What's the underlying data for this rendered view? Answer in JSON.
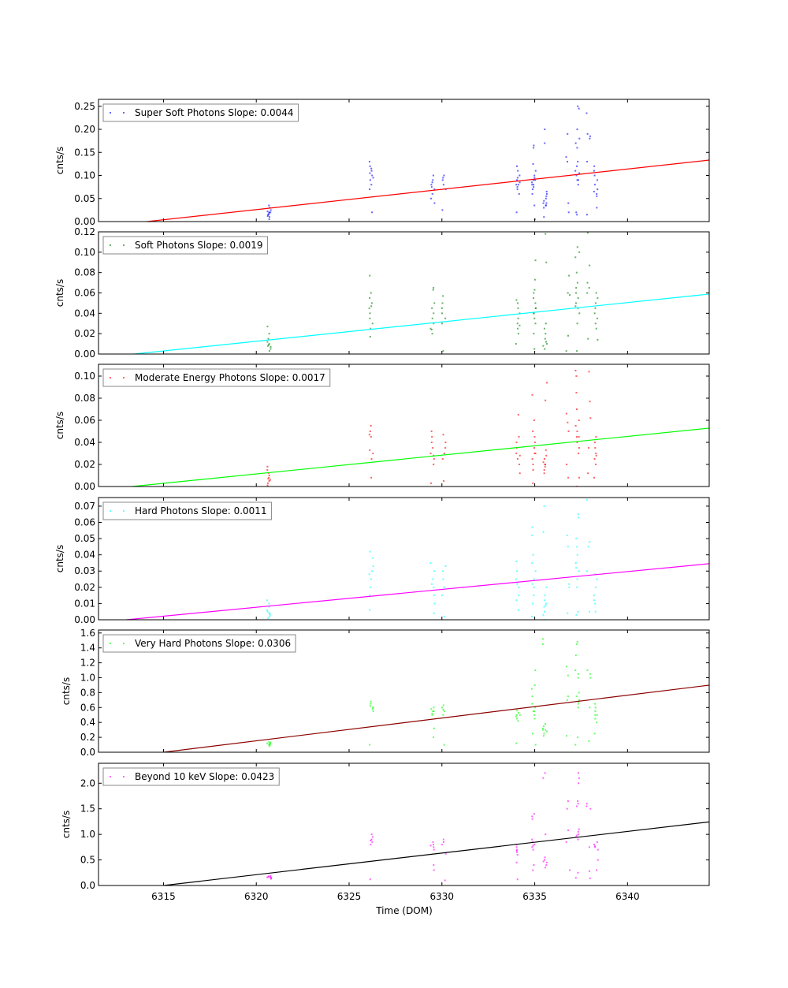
{
  "chart_data": {
    "type": "scatter",
    "xlabel": "Time (DOM)",
    "xlim": [
      6311.5,
      6344.4
    ],
    "x_ticks": [
      6315,
      6320,
      6325,
      6330,
      6335,
      6340
    ],
    "x_tick_labels": [
      "6315",
      "6320",
      "6325",
      "6330",
      "6335",
      "6340"
    ],
    "cluster_x": [
      6320.7,
      6326.2,
      6329.5,
      6330.1,
      6334.1,
      6334.95,
      6335.55,
      6336.8,
      6337.3,
      6337.9,
      6338.3
    ],
    "panels": [
      {
        "legend": "Super Soft Photons Slope: 0.0044",
        "ylabel": "cnts/s",
        "ylim": [
          0,
          0.265
        ],
        "y_ticks": [
          0,
          0.05,
          0.1,
          0.15,
          0.2,
          0.25
        ],
        "y_tick_labels": [
          "0.00",
          "0.05",
          "0.10",
          "0.15",
          "0.20",
          "0.25"
        ],
        "point_color": "#0000ff",
        "fit_color": "#ff0000",
        "fit": {
          "slope": 0.0044,
          "zero_x": 6314.1
        },
        "clusters": [
          [
            0.005,
            0.01,
            0.012,
            0.015,
            0.018,
            0.02,
            0.022,
            0.025,
            0.03,
            0.035,
            0.015,
            0.02
          ],
          [
            0.02,
            0.07,
            0.08,
            0.09,
            0.1,
            0.105,
            0.11,
            0.115,
            0.12,
            0.13,
            0.095
          ],
          [
            0.04,
            0.05,
            0.06,
            0.07,
            0.08,
            0.085,
            0.09,
            0.1,
            0.075
          ],
          [
            0.025,
            0.07,
            0.08,
            0.09,
            0.1,
            0.095
          ],
          [
            0.02,
            0.06,
            0.07,
            0.075,
            0.08,
            0.085,
            0.09,
            0.1,
            0.11,
            0.12,
            0.08,
            0.095
          ],
          [
            0.005,
            0.035,
            0.06,
            0.07,
            0.075,
            0.08,
            0.085,
            0.09,
            0.095,
            0.1,
            0.11,
            0.125,
            0.16,
            0.165,
            0.08,
            0.09
          ],
          [
            0.2,
            0.17,
            0.01,
            0.03,
            0.035,
            0.04,
            0.045,
            0.05,
            0.055,
            0.06,
            0.065,
            0.04,
            0.035
          ],
          [
            0.02,
            0.04,
            0.14,
            0.13,
            0.19
          ],
          [
            0.02,
            0.015,
            0.08,
            0.09,
            0.1,
            0.105,
            0.11,
            0.12,
            0.13,
            0.16,
            0.17,
            0.18,
            0.2,
            0.245,
            0.25,
            0.09
          ],
          [
            0.015,
            0.18,
            0.185,
            0.19,
            0.235,
            0.13
          ],
          [
            0.03,
            0.055,
            0.06,
            0.07,
            0.08,
            0.09,
            0.1,
            0.11,
            0.12,
            0.065
          ]
        ]
      },
      {
        "legend": "Soft Photons Slope: 0.0019",
        "ylabel": "cnts/s",
        "ylim": [
          0,
          0.12
        ],
        "y_ticks": [
          0,
          0.02,
          0.04,
          0.06,
          0.08,
          0.1,
          0.12
        ],
        "y_tick_labels": [
          "0.00",
          "0.02",
          "0.04",
          "0.06",
          "0.08",
          "0.10",
          "0.12"
        ],
        "point_color": "#008000",
        "fit_color": "#00ffff",
        "fit": {
          "slope": 0.0019,
          "zero_x": 6313.4
        },
        "clusters": [
          [
            0.003,
            0.005,
            0.007,
            0.008,
            0.01,
            0.012,
            0.015,
            0.02,
            0.027,
            0.009
          ],
          [
            0.017,
            0.025,
            0.03,
            0.035,
            0.04,
            0.045,
            0.05,
            0.055,
            0.06,
            0.077,
            0.047
          ],
          [
            0.02,
            0.025,
            0.03,
            0.035,
            0.04,
            0.045,
            0.05,
            0.065,
            0.063,
            0.024
          ],
          [
            0.003,
            0.03,
            0.035,
            0.04,
            0.045,
            0.05,
            0.057
          ],
          [
            0.01,
            0.02,
            0.025,
            0.03,
            0.035,
            0.04,
            0.045,
            0.05,
            0.053,
            0.028
          ],
          [
            0.005,
            0.02,
            0.03,
            0.035,
            0.04,
            0.045,
            0.05,
            0.055,
            0.06,
            0.063,
            0.073,
            0.092,
            0.04,
            0.045
          ],
          [
            0.118,
            0.09,
            0.005,
            0.008,
            0.01,
            0.015,
            0.02,
            0.025,
            0.03,
            0.012
          ],
          [
            0.018,
            0.06,
            0.058,
            0.077,
            0.003
          ],
          [
            0.003,
            0.03,
            0.04,
            0.045,
            0.05,
            0.055,
            0.06,
            0.065,
            0.07,
            0.08,
            0.095,
            0.1,
            0.105,
            0.047
          ],
          [
            0.015,
            0.06,
            0.065,
            0.07,
            0.087,
            0.119
          ],
          [
            0.014,
            0.025,
            0.03,
            0.035,
            0.04,
            0.045,
            0.05,
            0.055,
            0.06
          ]
        ]
      },
      {
        "legend": "Moderate Energy Photons Slope: 0.0017",
        "ylabel": "cnts/s",
        "ylim": [
          0,
          0.1107
        ],
        "y_ticks": [
          0,
          0.02,
          0.04,
          0.06,
          0.08,
          0.1
        ],
        "y_tick_labels": [
          "0.00",
          "0.02",
          "0.04",
          "0.06",
          "0.08",
          "0.10"
        ],
        "point_color": "#ff0000",
        "fit_color": "#00ff00",
        "fit": {
          "slope": 0.0017,
          "zero_x": 6313.3
        },
        "clusters": [
          [
            0.001,
            0.003,
            0.005,
            0.007,
            0.008,
            0.01,
            0.012,
            0.015,
            0.018,
            0.006
          ],
          [
            0.008,
            0.025,
            0.03,
            0.033,
            0.045,
            0.05,
            0.055,
            0.047
          ],
          [
            0.003,
            0.02,
            0.025,
            0.03,
            0.035,
            0.04,
            0.045,
            0.05,
            0.028
          ],
          [
            0.005,
            0.025,
            0.03,
            0.035,
            0.04,
            0.047
          ],
          [
            0.012,
            0.02,
            0.025,
            0.03,
            0.035,
            0.04,
            0.045,
            0.065,
            0.028
          ],
          [
            0.003,
            0.015,
            0.02,
            0.025,
            0.03,
            0.035,
            0.04,
            0.045,
            0.05,
            0.06,
            0.083,
            0.03
          ],
          [
            0.094,
            0.078,
            0.012,
            0.015,
            0.018,
            0.02,
            0.022,
            0.025,
            0.028,
            0.033,
            0.02
          ],
          [
            0.008,
            0.05,
            0.058,
            0.066,
            0.02
          ],
          [
            0.0,
            0.008,
            0.03,
            0.035,
            0.04,
            0.045,
            0.05,
            0.055,
            0.06,
            0.07,
            0.085,
            0.1,
            0.105,
            0.045
          ],
          [
            0.012,
            0.062,
            0.077,
            0.104,
            0.035
          ],
          [
            0.008,
            0.02,
            0.025,
            0.03,
            0.035,
            0.04,
            0.045,
            0.028
          ]
        ]
      },
      {
        "legend": "Hard Photons Slope: 0.0011",
        "ylabel": "cnts/s",
        "ylim": [
          0,
          0.0753
        ],
        "y_ticks": [
          0,
          0.01,
          0.02,
          0.03,
          0.04,
          0.05,
          0.06,
          0.07
        ],
        "y_tick_labels": [
          "0.00",
          "0.01",
          "0.02",
          "0.03",
          "0.04",
          "0.05",
          "0.06",
          "0.07"
        ],
        "point_color": "#00ffff",
        "fit_color": "#ff00ff",
        "fit": {
          "slope": 0.0011,
          "zero_x": 6313.0
        },
        "clusters": [
          [
            0.001,
            0.002,
            0.003,
            0.004,
            0.005,
            0.006,
            0.008,
            0.01,
            0.012,
            0.004
          ],
          [
            0.006,
            0.015,
            0.02,
            0.025,
            0.03,
            0.033,
            0.038,
            0.042,
            0.028
          ],
          [
            0.004,
            0.01,
            0.015,
            0.02,
            0.025,
            0.03,
            0.035,
            0.022
          ],
          [
            0.002,
            0.015,
            0.02,
            0.025,
            0.03,
            0.033
          ],
          [
            0.006,
            0.012,
            0.015,
            0.02,
            0.025,
            0.03,
            0.036,
            0.022
          ],
          [
            0.002,
            0.01,
            0.015,
            0.02,
            0.025,
            0.03,
            0.035,
            0.04,
            0.052,
            0.057,
            0.022
          ],
          [
            0.07,
            0.054,
            0.0,
            0.003,
            0.005,
            0.008,
            0.01,
            0.012,
            0.015,
            0.02,
            0.009
          ],
          [
            0.004,
            0.022,
            0.045,
            0.052,
            0.02
          ],
          [
            0.003,
            0.005,
            0.02,
            0.025,
            0.03,
            0.035,
            0.04,
            0.045,
            0.05,
            0.063,
            0.065,
            0.032
          ],
          [
            0.005,
            0.03,
            0.045,
            0.048,
            0.074
          ],
          [
            0.005,
            0.01,
            0.015,
            0.02,
            0.025,
            0.028,
            0.012
          ]
        ]
      },
      {
        "legend": "Very Hard Photons Slope: 0.0306",
        "ylabel": "cnts/s",
        "ylim": [
          0,
          1.64
        ],
        "y_ticks": [
          0,
          0.2,
          0.4,
          0.6,
          0.8,
          1.0,
          1.2,
          1.4,
          1.6
        ],
        "y_tick_labels": [
          "0.0",
          "0.2",
          "0.4",
          "0.6",
          "0.8",
          "1.0",
          "1.2",
          "1.4",
          "1.6"
        ],
        "point_color": "#00ff00",
        "fit_color": "#8b0000",
        "fit": {
          "slope": 0.0306,
          "zero_x": 6315.0
        },
        "clusters": [
          [
            0.08,
            0.1,
            0.11,
            0.12,
            0.13,
            0.14,
            0.1,
            0.12
          ],
          [
            0.1,
            0.55,
            0.58,
            0.6,
            0.62,
            0.65,
            0.68,
            0.6
          ],
          [
            0.2,
            0.32,
            0.5,
            0.52,
            0.55,
            0.58,
            0.6,
            0.55
          ],
          [
            0.1,
            0.5,
            0.55,
            0.6,
            0.63,
            0.57
          ],
          [
            0.12,
            0.42,
            0.45,
            0.48,
            0.5,
            0.53,
            0.56,
            0.5
          ],
          [
            0.1,
            0.25,
            0.45,
            0.5,
            0.55,
            0.6,
            0.65,
            0.75,
            0.85,
            0.9,
            1.1,
            0.55
          ],
          [
            1.52,
            1.45,
            0.22,
            0.25,
            0.28,
            0.3,
            0.32,
            0.35,
            0.38,
            0.3
          ],
          [
            0.22,
            0.7,
            1.03,
            1.15,
            0.75
          ],
          [
            0.1,
            0.2,
            0.6,
            0.65,
            0.7,
            0.75,
            0.8,
            1.0,
            1.05,
            1.1,
            1.3,
            1.45,
            1.48,
            0.68
          ],
          [
            0.15,
            0.6,
            1.0,
            1.05,
            1.1
          ],
          [
            0.25,
            0.4,
            0.45,
            0.5,
            0.55,
            0.6,
            0.65,
            0.5
          ]
        ]
      },
      {
        "legend": "Beyond 10 keV Slope: 0.0423",
        "ylabel": "cnts/s",
        "ylim": [
          0,
          2.39
        ],
        "y_ticks": [
          0,
          0.5,
          1.0,
          1.5,
          2.0
        ],
        "y_tick_labels": [
          "0.0",
          "0.5",
          "1.0",
          "1.5",
          "2.0"
        ],
        "point_color": "#ff00ff",
        "fit_color": "#000000",
        "fit": {
          "slope": 0.0423,
          "zero_x": 6315.0
        },
        "clusters": [
          [
            0.13,
            0.15,
            0.16,
            0.17,
            0.18,
            0.19,
            0.15,
            0.17
          ],
          [
            0.12,
            0.8,
            0.85,
            0.9,
            0.95,
            1.0,
            0.88
          ],
          [
            0.3,
            0.4,
            0.7,
            0.75,
            0.8,
            0.85,
            0.78
          ],
          [
            0.1,
            0.62,
            0.8,
            0.85,
            0.9
          ],
          [
            0.12,
            0.45,
            0.6,
            0.65,
            0.7,
            0.75,
            0.8,
            0.68
          ],
          [
            0.3,
            0.4,
            0.7,
            0.75,
            0.8,
            0.85,
            0.9,
            1.3,
            1.35,
            1.4,
            0.78
          ],
          [
            2.2,
            2.1,
            0.35,
            0.4,
            0.45,
            0.5,
            0.55,
            1.0,
            0.47
          ],
          [
            0.3,
            1.08,
            1.5,
            1.65,
            0.85
          ],
          [
            0.15,
            0.25,
            0.9,
            0.95,
            1.0,
            1.05,
            1.1,
            1.55,
            1.6,
            1.65,
            2.0,
            2.1,
            2.2,
            0.98
          ],
          [
            0.14,
            0.28,
            0.75,
            1.5,
            1.55,
            1.6
          ],
          [
            0.3,
            0.5,
            0.7,
            0.75,
            0.8,
            0.85,
            0.77
          ]
        ]
      }
    ]
  }
}
